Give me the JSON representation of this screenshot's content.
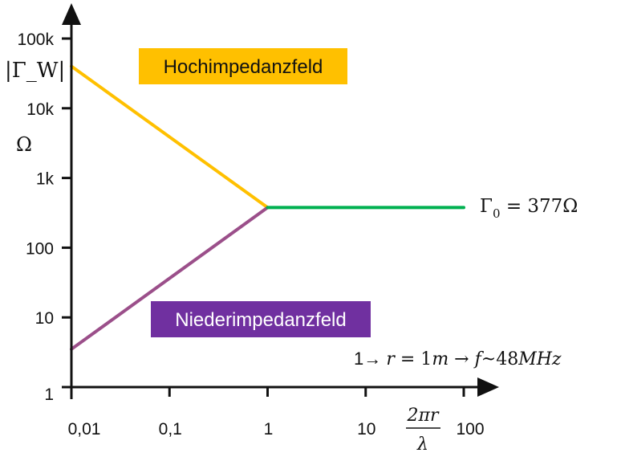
{
  "chart_data": {
    "type": "line",
    "scale": {
      "x": "log",
      "y": "log"
    },
    "x_ticks": [
      {
        "value": 0.01,
        "label": "0,01"
      },
      {
        "value": 0.1,
        "label": "0,1"
      },
      {
        "value": 1,
        "label": "1"
      },
      {
        "value": 10,
        "label": "10"
      },
      {
        "value": 100,
        "label": "100"
      }
    ],
    "y_ticks": [
      {
        "value": 1,
        "label": "1"
      },
      {
        "value": 10,
        "label": "10"
      },
      {
        "value": 100,
        "label": "100"
      },
      {
        "value": 1000,
        "label": "1k"
      },
      {
        "value": 10000,
        "label": "10k"
      },
      {
        "value": 100000,
        "label": "100k"
      }
    ],
    "xlim": [
      0.01,
      100
    ],
    "ylim": [
      1,
      100000
    ],
    "y_axis_label": {
      "name": "|Γ_W|",
      "unit": "Ω"
    },
    "x_axis_label": {
      "numerator": "2πr",
      "denominator": "λ"
    },
    "series": [
      {
        "color": "#FFC000",
        "points": [
          [
            0.01,
            40000
          ],
          [
            1,
            377
          ]
        ]
      },
      {
        "color": "#9B4F8A",
        "points": [
          [
            0.01,
            3.5
          ],
          [
            1,
            377
          ]
        ]
      },
      {
        "color": "#00B050",
        "points": [
          [
            1,
            377
          ],
          [
            100,
            377
          ]
        ]
      }
    ],
    "annotations": {
      "high_impedance": {
        "text": "Hochimpedanzfeld",
        "background": "#FFC000",
        "color": "#111111"
      },
      "low_impedance": {
        "text": "Niederimpedanzfeld",
        "background": "#7030A0",
        "color": "#ffffff"
      },
      "free_space": {
        "symbol": "Γ",
        "subscript": "0",
        "equals": " = 377Ω"
      },
      "example": {
        "lead": "1→ ",
        "r_var": "r",
        "r_eq": " = 1",
        "r_unit": "m",
        "arrow": "  → ",
        "f_var": "f",
        "f_approx": "~48",
        "f_unit": "MHz"
      }
    }
  }
}
